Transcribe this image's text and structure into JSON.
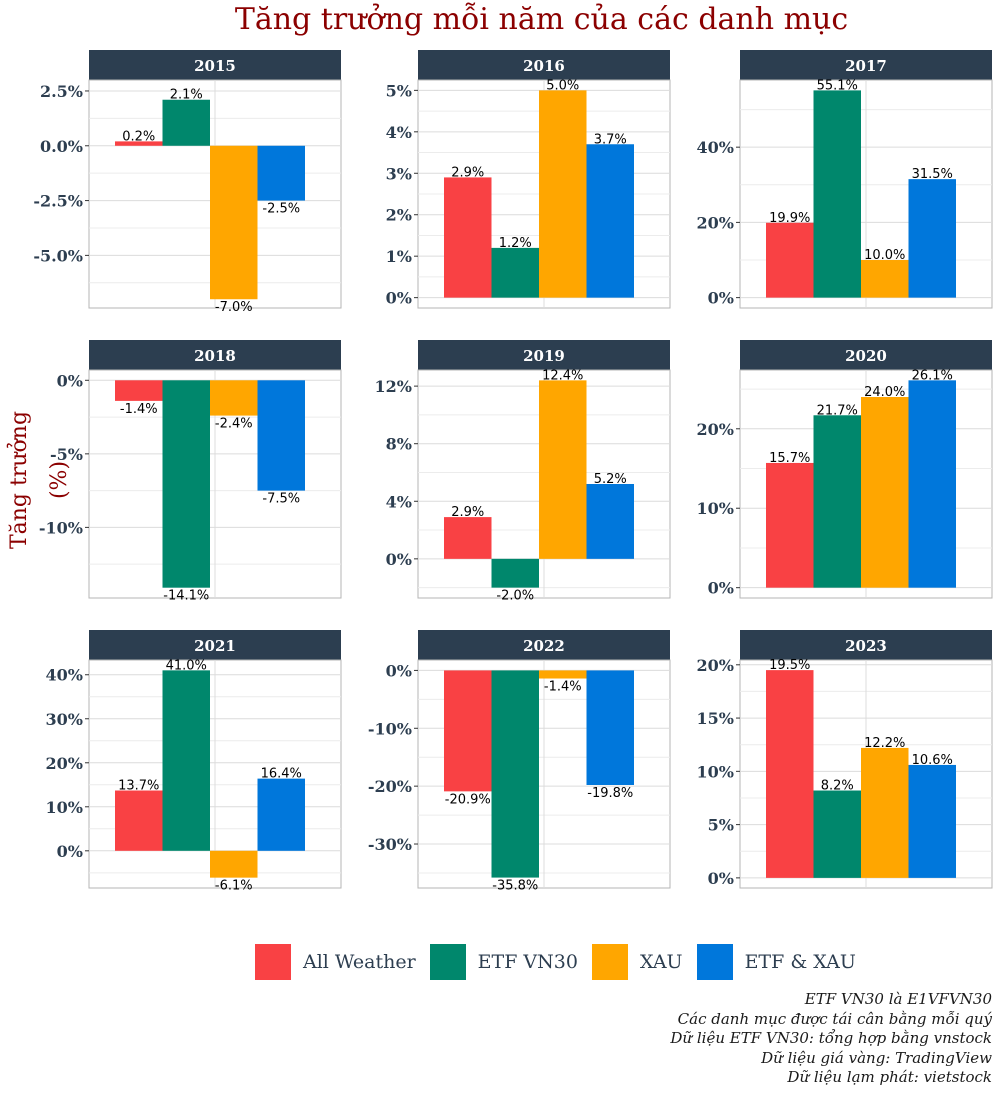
{
  "chart_data": {
    "type": "bar",
    "title": "Tăng trưởng mỗi năm của các danh mục",
    "ylabel": "Tăng trưởng (%)",
    "xlabel": "",
    "series_names": [
      "All Weather",
      "ETF VN30",
      "XAU",
      "ETF & XAU"
    ],
    "colors": [
      "#f94144",
      "#00876c",
      "#ffa600",
      "#0077db"
    ],
    "legend_position": "bottom",
    "grid": true,
    "panels": [
      {
        "year": "2015",
        "values": [
          0.2,
          2.1,
          -7.0,
          -2.5
        ],
        "ylim": [
          -7.4,
          3.0
        ],
        "ticks": [
          2.5,
          0.0,
          -2.5,
          -5.0
        ],
        "decimals": 1,
        "labels": [
          "0.2%",
          "2.1%",
          "-7.0%",
          "-2.5%"
        ]
      },
      {
        "year": "2016",
        "values": [
          2.9,
          1.2,
          5.0,
          3.7
        ],
        "ylim": [
          -0.25,
          5.25
        ],
        "ticks": [
          0,
          1,
          2,
          3,
          4,
          5
        ],
        "decimals": 0,
        "labels": [
          "2.9%",
          "1.2%",
          "5.0%",
          "3.7%"
        ]
      },
      {
        "year": "2017",
        "values": [
          19.9,
          55.1,
          10.0,
          31.5
        ],
        "ylim": [
          -2.76,
          57.86
        ],
        "ticks": [
          0,
          20,
          40
        ],
        "decimals": 0,
        "labels": [
          "19.9%",
          "55.1%",
          "10.0%",
          "31.5%"
        ]
      },
      {
        "year": "2018",
        "values": [
          -1.4,
          -14.1,
          -2.4,
          -7.5
        ],
        "ylim": [
          -14.8,
          0.7
        ],
        "ticks": [
          0,
          -5,
          -10
        ],
        "decimals": 0,
        "labels": [
          "-1.4%",
          "-14.1%",
          "-2.4%",
          "-7.5%"
        ]
      },
      {
        "year": "2019",
        "values": [
          2.9,
          -2.0,
          12.4,
          5.2
        ],
        "ylim": [
          -2.72,
          13.12
        ],
        "ticks": [
          12,
          8,
          4,
          0
        ],
        "decimals": 0,
        "labels": [
          "2.9%",
          "-2.0%",
          "12.4%",
          "5.2%"
        ]
      },
      {
        "year": "2020",
        "values": [
          15.7,
          21.7,
          24.0,
          26.1
        ],
        "ylim": [
          -1.3,
          27.4
        ],
        "ticks": [
          0,
          10,
          20
        ],
        "decimals": 0,
        "labels": [
          "15.7%",
          "21.7%",
          "24.0%",
          "26.1%"
        ]
      },
      {
        "year": "2021",
        "values": [
          13.7,
          41.0,
          -6.1,
          16.4
        ],
        "ylim": [
          -8.45,
          43.35
        ],
        "ticks": [
          0,
          10,
          20,
          30,
          40
        ],
        "decimals": 0,
        "labels": [
          "13.7%",
          "41.0%",
          "-6.1%",
          "16.4%"
        ]
      },
      {
        "year": "2022",
        "values": [
          -20.9,
          -35.8,
          -1.4,
          -19.8
        ],
        "ylim": [
          -37.6,
          1.8
        ],
        "ticks": [
          0,
          -10,
          -20,
          -30
        ],
        "decimals": 0,
        "labels": [
          "-20.9%",
          "-35.8%",
          "-1.4%",
          "-19.8%"
        ]
      },
      {
        "year": "2023",
        "values": [
          19.5,
          8.2,
          12.2,
          10.6
        ],
        "ylim": [
          -0.95,
          20.45
        ],
        "ticks": [
          0,
          5,
          10,
          15,
          20
        ],
        "decimals": 0,
        "labels": [
          "19.5%",
          "8.2%",
          "12.2%",
          "10.6%"
        ]
      }
    ]
  },
  "legend": {
    "items": [
      {
        "label": "All Weather",
        "color": "#f94144"
      },
      {
        "label": "ETF VN30",
        "color": "#00876c"
      },
      {
        "label": "XAU",
        "color": "#ffa600"
      },
      {
        "label": "ETF & XAU",
        "color": "#0077db"
      }
    ]
  },
  "notes": [
    "ETF VN30 là E1VFVN30",
    "Các danh mục được tái cân bằng mỗi quý",
    "Dữ liệu ETF VN30: tổng hợp bằng vnstock",
    "Dữ liệu giá vàng: TradingView",
    "Dữ liệu lạm phát: vietstock"
  ]
}
